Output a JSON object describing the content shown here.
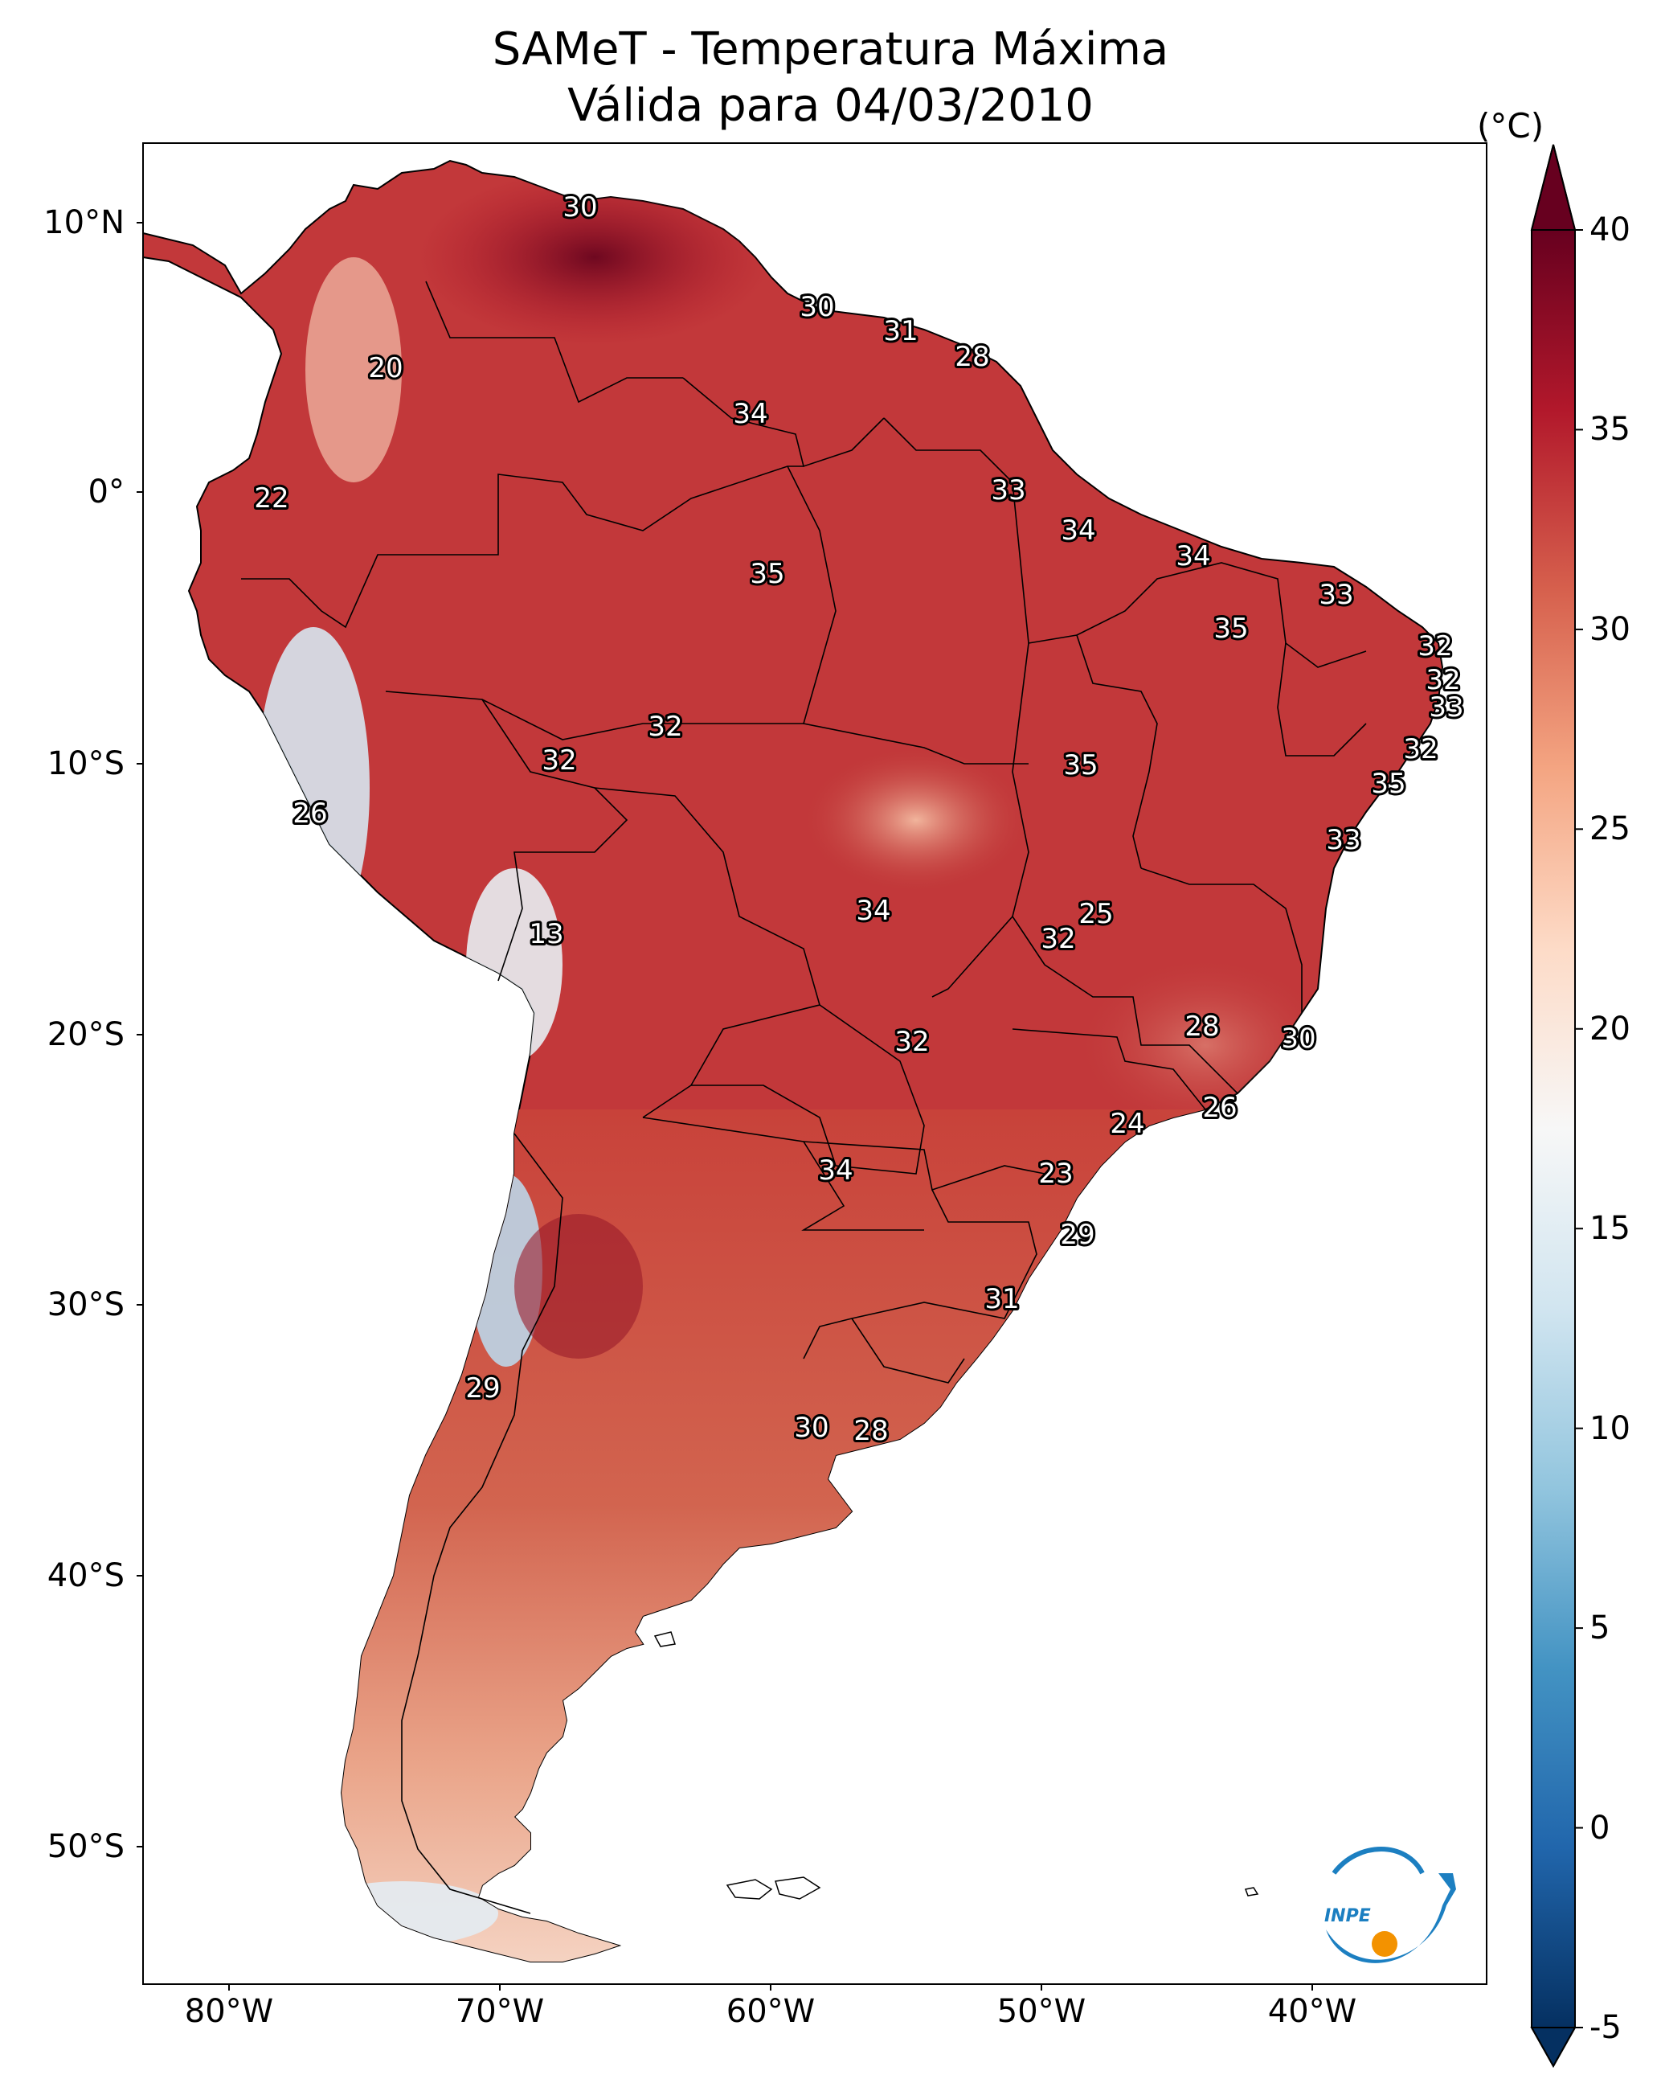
{
  "title": {
    "line1": "SAMeT - Temperatura Máxima",
    "line2": "Válida para 04/03/2010"
  },
  "map": {
    "lat_ticks": [
      "10°N",
      "0°",
      "10°S",
      "20°S",
      "30°S",
      "40°S",
      "50°S"
    ],
    "lon_ticks": [
      "80°W",
      "70°W",
      "60°W",
      "50°W",
      "40°W"
    ],
    "contour_labels": [
      "30",
      "30",
      "31",
      "28",
      "20",
      "34",
      "33",
      "22",
      "34",
      "35",
      "34",
      "35",
      "33",
      "32",
      "32",
      "33",
      "32",
      "32",
      "35",
      "32",
      "26",
      "35",
      "33",
      "25",
      "34",
      "32",
      "13",
      "28",
      "30",
      "32",
      "24",
      "26",
      "34",
      "23",
      "29",
      "31",
      "29",
      "30",
      "28"
    ]
  },
  "colorbar": {
    "unit": "(°C)",
    "ticks": [
      "40",
      "35",
      "30",
      "25",
      "20",
      "15",
      "10",
      "5",
      "0",
      "-5"
    ],
    "min": -5,
    "max": 40,
    "colors": [
      "#053061",
      "#2166ac",
      "#4393c3",
      "#92c5de",
      "#d1e5f0",
      "#f7f7f7",
      "#fddbc7",
      "#f4a582",
      "#d6604d",
      "#b2182b",
      "#67001f"
    ]
  },
  "logo": {
    "text": "INPE",
    "colors": {
      "arc": "#1c7fc1",
      "dot": "#f39200"
    }
  }
}
